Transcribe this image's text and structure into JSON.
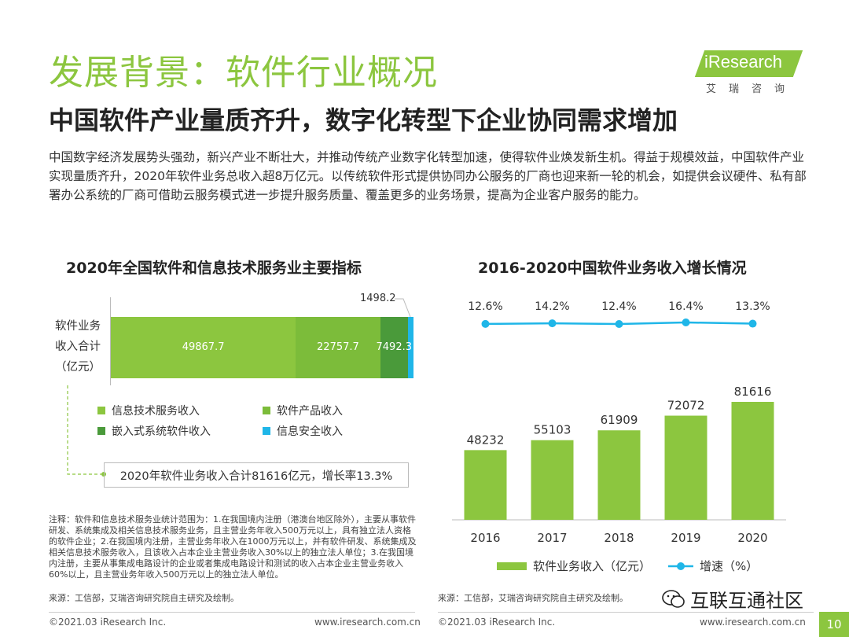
{
  "title": "发展背景：软件行业概况",
  "subtitle": "中国软件产业量质齐升，数字化转型下企业协同需求增加",
  "intro": "中国数字经济发展势头强劲，新兴产业不断壮大，并推动传统产业数字化转型加速，使得软件业焕发新生机。得益于规模效益，中国软件产业实现量质齐升，2020年软件业务总收入超8万亿元。以传统软件形式提供协同办公服务的厂商也迎来新一轮的机会，如提供会议硬件、私有部署办公系统的厂商可借助云服务模式进一步提升服务质量、覆盖更多的业务场景，提高为企业客户服务的能力。",
  "logo": {
    "text": "iResearch",
    "cn": "艾瑞咨询"
  },
  "left_chart_ylabel": [
    "软件业务",
    "收入合计",
    "（亿元）"
  ],
  "callout": "2020年软件业务收入合计81616亿元，增长率13.3%",
  "note": "注释：软件和信息技术服务业统计范围为：1.在我国境内注册（港澳台地区除外），主要从事软件研发、系统集成及相关信息技术服务业务，且主营业务年收入500万元以上，具有独立法人资格的软件企业；2.在我国境内注册，主营业务年收入在1000万元以上，并有软件研发、系统集成及相关信息技术服务收入，且该收入占本企业主营业务收入30%以上的独立法人单位；3.在我国境内注册，主要从事集成电路设计的企业或者集成电路设计和测试的收入占本企业主营业务收入60%以上，且主营业务年收入500万元以上的独立法人单位。",
  "source_left": "来源：工信部，艾瑞咨询研究院自主研究及绘制。",
  "source_right": "来源：工信部，艾瑞咨询研究院自主研究及绘制。",
  "footer": {
    "left_copyright": "©2021.03 iResearch Inc.",
    "left_url": "www.iresearch.com.cn",
    "right_copyright": "©2021.03 iResearch Inc.",
    "right_url": "www.iresearch.com.cn",
    "page": "10"
  },
  "watermark": "互联互通社区",
  "colors": {
    "green": "#8cc63f",
    "mid_green": "#5ea33a",
    "dark_green": "#4a9a3a",
    "cyan": "#1fb6e8",
    "light_green": "#a8d05a"
  },
  "chart_data": [
    {
      "type": "bar",
      "stacked": true,
      "orientation": "horizontal",
      "title": "2020年全国软件和信息技术服务业主要指标",
      "categories": [
        "软件业务收入合计（亿元）"
      ],
      "series": [
        {
          "name": "信息技术服务收入",
          "values": [
            49867.7
          ],
          "color": "#8cc63f"
        },
        {
          "name": "软件产品收入",
          "values": [
            22757.7
          ],
          "color": "#7cbc3a"
        },
        {
          "name": "嵌入式系统软件收入",
          "values": [
            7492.3
          ],
          "color": "#4a9a3a"
        },
        {
          "name": "信息安全收入",
          "values": [
            1498.2
          ],
          "color": "#1fb6e8"
        }
      ],
      "legend_position": "bottom"
    },
    {
      "type": "bar",
      "title": "2016-2020中国软件业务收入增长情况",
      "categories": [
        "2016",
        "2017",
        "2018",
        "2019",
        "2020"
      ],
      "series": [
        {
          "name": "软件业务收入（亿元）",
          "type": "bar",
          "values": [
            48232,
            55103,
            61909,
            72072,
            81616
          ],
          "color": "#8cc63f"
        },
        {
          "name": "增速（%）",
          "type": "line",
          "values": [
            12.6,
            14.2,
            12.4,
            16.4,
            13.3
          ],
          "labels": [
            "12.6%",
            "14.2%",
            "12.4%",
            "16.4%",
            "13.3%"
          ],
          "color": "#1fb6e8"
        }
      ],
      "legend_position": "bottom"
    }
  ]
}
